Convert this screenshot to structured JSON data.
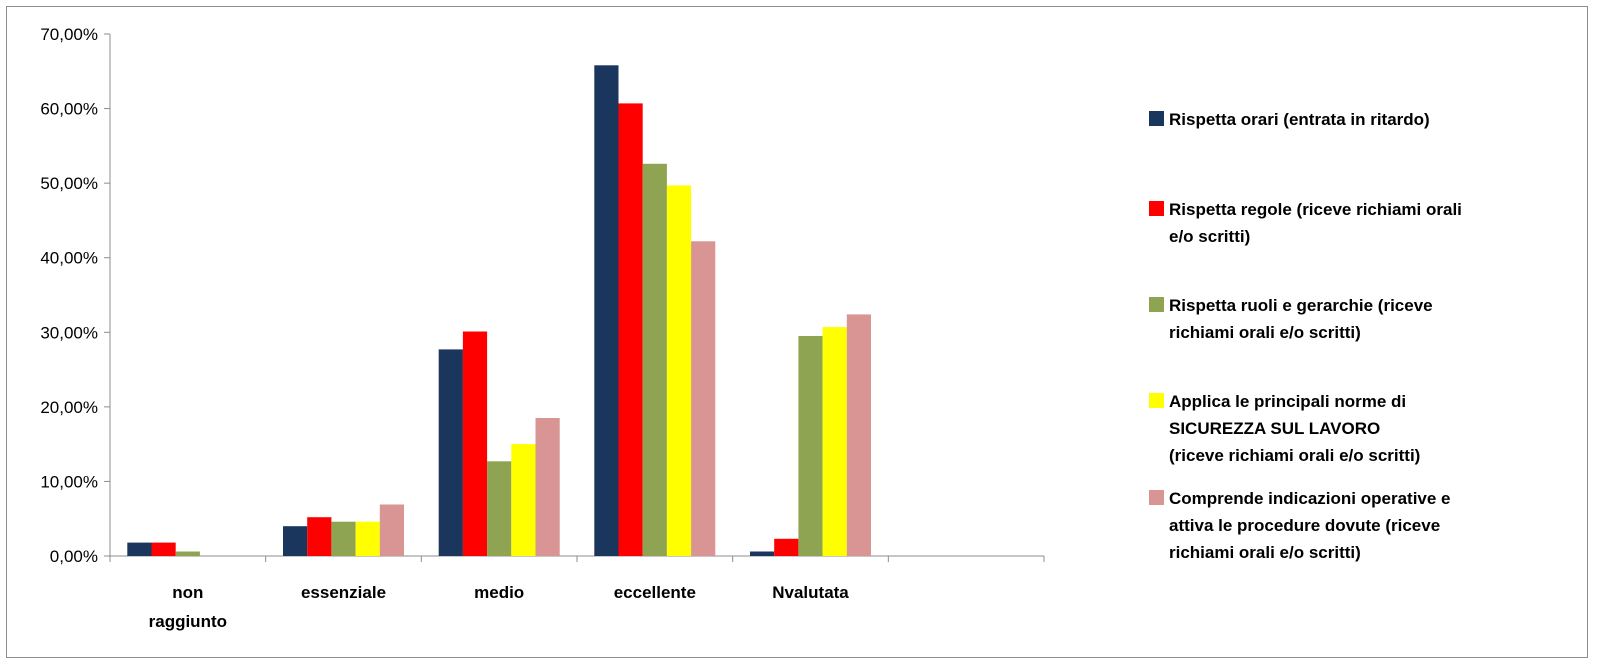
{
  "chart_data": {
    "type": "bar",
    "categories": [
      [
        "non",
        "raggiunto"
      ],
      [
        "essenziale"
      ],
      [
        "medio"
      ],
      [
        "eccellente"
      ],
      [
        "Nvalutata"
      ],
      [
        ""
      ]
    ],
    "yticks": [
      "0,00%",
      "10,00%",
      "20,00%",
      "30,00%",
      "40,00%",
      "50,00%",
      "60,00%",
      "70,00%"
    ],
    "ylim": [
      0,
      70
    ],
    "grid": false,
    "legend_position": "right",
    "series": [
      {
        "name": "Rispetta orari (entrata in ritardo)",
        "legend_lines": [
          "Rispetta orari (entrata in ritardo)"
        ],
        "color": "#1b365d",
        "values": [
          1.8,
          4.0,
          27.7,
          65.8,
          0.6,
          0
        ]
      },
      {
        "name": "Rispetta regole (riceve richiami orali e/o scritti)",
        "legend_lines": [
          "Rispetta regole (riceve richiami orali",
          "e/o scritti)"
        ],
        "color": "#ff0000",
        "values": [
          1.8,
          5.2,
          30.1,
          60.7,
          2.3,
          0
        ]
      },
      {
        "name": "Rispetta ruoli e gerarchie (riceve richiami orali e/o scritti)",
        "legend_lines": [
          "Rispetta ruoli e gerarchie (riceve",
          "richiami orali e/o scritti)"
        ],
        "color": "#8ea453",
        "values": [
          0.6,
          4.6,
          12.7,
          52.6,
          29.5,
          0
        ]
      },
      {
        "name": "Applica le principali norme di SICUREZZA SUL LAVORO (riceve richiami orali e/o scritti)",
        "legend_lines": [
          "Applica le principali norme di",
          "SICUREZZA SUL LAVORO",
          " (riceve richiami orali e/o scritti)"
        ],
        "color": "#ffff00",
        "values": [
          0,
          4.6,
          15.0,
          49.7,
          30.7,
          0
        ]
      },
      {
        "name": "Comprende indicazioni operative e attiva le procedure dovute (riceve richiami orali e/o scritti)",
        "legend_lines": [
          "Comprende indicazioni operative e",
          "attiva le procedure dovute (riceve",
          "richiami orali e/o scritti)"
        ],
        "color": "#d99594",
        "values": [
          0,
          6.9,
          18.5,
          42.2,
          32.4,
          0
        ]
      }
    ]
  }
}
